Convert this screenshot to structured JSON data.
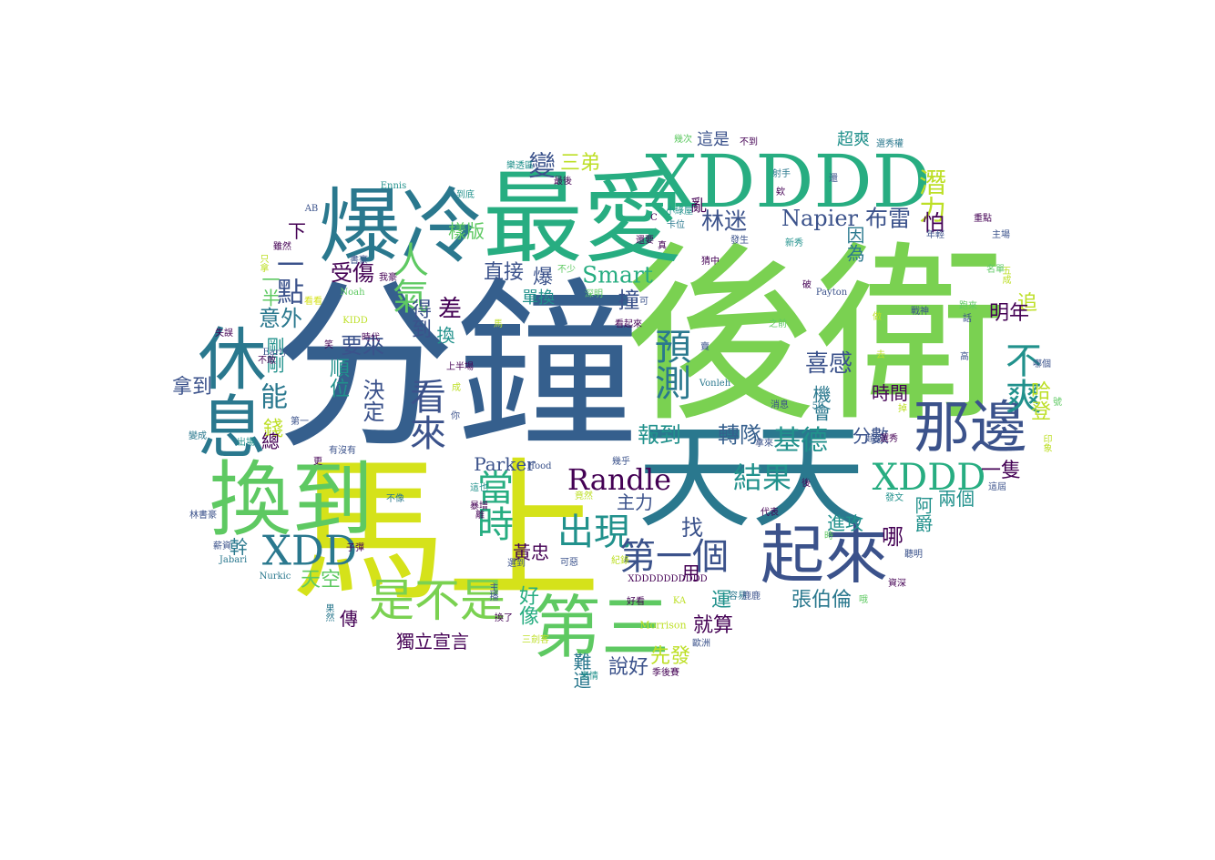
{
  "palette": [
    "#440154",
    "#3b528b",
    "#21918c",
    "#2a788e",
    "#27ad81",
    "#5ec962",
    "#7ad151",
    "#bddf26",
    "#d5e21a",
    "#355f8d"
  ],
  "words": [
    {
      "text": "後衛",
      "color": "#7ad151"
    },
    {
      "text": "分鐘",
      "color": "#355f8d"
    },
    {
      "text": "馬上",
      "color": "#d5e21a"
    },
    {
      "text": "天天",
      "color": "#2a788e"
    },
    {
      "text": "最愛",
      "color": "#27ad81"
    },
    {
      "text": "爆冷",
      "color": "#2a788e"
    },
    {
      "text": "XDDDD",
      "color": "#27ad81"
    },
    {
      "text": "換到",
      "color": "#5ec962"
    },
    {
      "text": "休息",
      "color": "#2a788e"
    },
    {
      "text": "那邊",
      "color": "#3b528b"
    },
    {
      "text": "起來",
      "color": "#3b528b"
    },
    {
      "text": "第三",
      "color": "#5ec962"
    },
    {
      "text": "XDD",
      "color": "#2a788e"
    },
    {
      "text": "XDDD",
      "color": "#27ad81"
    },
    {
      "text": "預測",
      "color": "#2a788e"
    },
    {
      "text": "人氣",
      "color": "#5ec962"
    },
    {
      "text": "是不是",
      "color": "#7ad151"
    },
    {
      "text": "Randle",
      "color": "#440154"
    },
    {
      "text": "出現",
      "color": "#21918c"
    },
    {
      "text": "第一個",
      "color": "#3b528b"
    },
    {
      "text": "看來",
      "color": "#3b528b"
    },
    {
      "text": "當時",
      "color": "#27ad81"
    },
    {
      "text": "Napier",
      "color": "#3b528b"
    },
    {
      "text": "不爽",
      "color": "#21918c"
    },
    {
      "text": "一點",
      "color": "#3b528b"
    },
    {
      "text": "能",
      "color": "#2a788e"
    },
    {
      "text": "Smart",
      "color": "#27ad81"
    },
    {
      "text": "林迷",
      "color": "#3b528b"
    },
    {
      "text": "布雷",
      "color": "#3b528b"
    },
    {
      "text": "潛力",
      "color": "#bddf26"
    },
    {
      "text": "結果",
      "color": "#21918c"
    },
    {
      "text": "基德",
      "color": "#21918c"
    },
    {
      "text": "報到",
      "color": "#21918c"
    },
    {
      "text": "轉隊",
      "color": "#355f8d"
    },
    {
      "text": "喜感",
      "color": "#3b528b"
    },
    {
      "text": "受傷",
      "color": "#440154"
    },
    {
      "text": "決定",
      "color": "#3b528b"
    },
    {
      "text": "要來",
      "color": "#3b528b"
    },
    {
      "text": "意外",
      "color": "#2a788e"
    },
    {
      "text": "得到",
      "color": "#3b528b"
    },
    {
      "text": "順位",
      "color": "#21918c"
    },
    {
      "text": "剛剛",
      "color": "#21918c"
    },
    {
      "text": "拿到",
      "color": "#3b528b"
    },
    {
      "text": "錢",
      "color": "#bddf26"
    },
    {
      "text": "差",
      "color": "#440154"
    },
    {
      "text": "換",
      "color": "#21918c"
    },
    {
      "text": "直接",
      "color": "#3b528b"
    },
    {
      "text": "爆",
      "color": "#3b528b"
    },
    {
      "text": "單換",
      "color": "#21918c"
    },
    {
      "text": "三弟",
      "color": "#bddf26"
    },
    {
      "text": "變",
      "color": "#3b528b"
    },
    {
      "text": "樣版",
      "color": "#5ec962"
    },
    {
      "text": "下",
      "color": "#440154"
    },
    {
      "text": "一半",
      "color": "#5ec962"
    },
    {
      "text": "撞",
      "color": "#3b528b"
    },
    {
      "text": "因為",
      "color": "#2a788e"
    },
    {
      "text": "怕",
      "color": "#440154"
    },
    {
      "text": "追",
      "color": "#bddf26"
    },
    {
      "text": "明年",
      "color": "#440154"
    },
    {
      "text": "哈登",
      "color": "#bddf26"
    },
    {
      "text": "時間",
      "color": "#440154"
    },
    {
      "text": "機會",
      "color": "#2a788e"
    },
    {
      "text": "分數",
      "color": "#3b528b"
    },
    {
      "text": "一隻",
      "color": "#440154"
    },
    {
      "text": "兩個",
      "color": "#21918c"
    },
    {
      "text": "阿爵",
      "color": "#21918c"
    },
    {
      "text": "哪",
      "color": "#440154"
    },
    {
      "text": "進攻",
      "color": "#21918c"
    },
    {
      "text": "張伯倫",
      "color": "#2a788e"
    },
    {
      "text": "運",
      "color": "#21918c"
    },
    {
      "text": "就算",
      "color": "#440154"
    },
    {
      "text": "用",
      "color": "#440154"
    },
    {
      "text": "找",
      "color": "#3b528b"
    },
    {
      "text": "主力",
      "color": "#3b528b"
    },
    {
      "text": "先發",
      "color": "#bddf26"
    },
    {
      "text": "說好",
      "color": "#3b528b"
    },
    {
      "text": "難道",
      "color": "#2a788e"
    },
    {
      "text": "好像",
      "color": "#27ad81"
    },
    {
      "text": "黃忠",
      "color": "#440154"
    },
    {
      "text": "Parker",
      "color": "#3b528b"
    },
    {
      "text": "天空",
      "color": "#5ec962"
    },
    {
      "text": "幹",
      "color": "#2a788e"
    },
    {
      "text": "總",
      "color": "#440154"
    },
    {
      "text": "傳",
      "color": "#440154"
    },
    {
      "text": "獨立宣言",
      "color": "#440154"
    },
    {
      "text": "超爽",
      "color": "#21918c"
    },
    {
      "text": "這是",
      "color": "#3b528b"
    },
    {
      "text": "亂",
      "color": "#440154"
    },
    {
      "text": "XDDDDDDDDDD",
      "color": "#440154"
    },
    {
      "text": "Hood",
      "color": "#3b528b"
    },
    {
      "text": "Nurkic",
      "color": "#2a788e"
    },
    {
      "text": "Jabari",
      "color": "#2a788e"
    },
    {
      "text": "Payton",
      "color": "#3b528b"
    },
    {
      "text": "Vonleh",
      "color": "#2a788e"
    },
    {
      "text": "Morrison",
      "color": "#bddf26"
    },
    {
      "text": "Early",
      "color": "#3b528b"
    },
    {
      "text": "Noah",
      "color": "#5ec962"
    },
    {
      "text": "KIDD",
      "color": "#bddf26"
    },
    {
      "text": "Ennis",
      "color": "#21918c"
    },
    {
      "text": "AB",
      "color": "#3b528b"
    },
    {
      "text": "KA",
      "color": "#bddf26"
    },
    {
      "text": "林書豪",
      "color": "#3b528b"
    },
    {
      "text": "薪資",
      "color": "#3b528b"
    },
    {
      "text": "變成",
      "color": "#2a788e"
    },
    {
      "text": "失誤",
      "color": "#440154"
    },
    {
      "text": "出場",
      "color": "#21918c"
    },
    {
      "text": "雖然",
      "color": "#440154"
    },
    {
      "text": "書豪",
      "color": "#3b528b"
    },
    {
      "text": "我豪",
      "color": "#440154"
    },
    {
      "text": "樂透區",
      "color": "#21918c"
    },
    {
      "text": "最後",
      "color": "#440154"
    },
    {
      "text": "還要",
      "color": "#440154"
    },
    {
      "text": "發生",
      "color": "#3b528b"
    },
    {
      "text": "新秀",
      "color": "#21918c"
    },
    {
      "text": "射手",
      "color": "#2a788e"
    },
    {
      "text": "選秀權",
      "color": "#2a788e"
    },
    {
      "text": "重點",
      "color": "#440154"
    },
    {
      "text": "年輕",
      "color": "#3b528b"
    },
    {
      "text": "主場",
      "color": "#3b528b"
    },
    {
      "text": "名單",
      "color": "#5ec962"
    },
    {
      "text": "哪個",
      "color": "#3b528b"
    },
    {
      "text": "這屆",
      "color": "#3b528b"
    },
    {
      "text": "發文",
      "color": "#21918c"
    },
    {
      "text": "資深",
      "color": "#440154"
    },
    {
      "text": "聽明",
      "color": "#3b528b"
    },
    {
      "text": "容易",
      "color": "#2a788e"
    },
    {
      "text": "鹿鹿",
      "color": "#3b528b"
    },
    {
      "text": "歐洲",
      "color": "#3b528b"
    },
    {
      "text": "季後賽",
      "color": "#440154"
    },
    {
      "text": "表情",
      "color": "#21918c"
    },
    {
      "text": "好看",
      "color": "#440154"
    },
    {
      "text": "代表",
      "color": "#440154"
    },
    {
      "text": "超級",
      "color": "#3b528b"
    },
    {
      "text": "選秀",
      "color": "#440154"
    },
    {
      "text": "消息",
      "color": "#3b528b"
    },
    {
      "text": "看起來",
      "color": "#440154"
    },
    {
      "text": "之前",
      "color": "#5ec962"
    },
    {
      "text": "戰神",
      "color": "#3b528b"
    },
    {
      "text": "猜中",
      "color": "#440154"
    },
    {
      "text": "小綠屋",
      "color": "#21918c"
    },
    {
      "text": "卡位",
      "color": "#2a788e"
    },
    {
      "text": "幾次",
      "color": "#5ec962"
    },
    {
      "text": "不到",
      "color": "#440154"
    },
    {
      "text": "上半場",
      "color": "#440154"
    },
    {
      "text": "有沒有",
      "color": "#3b528b"
    },
    {
      "text": "時代",
      "color": "#440154"
    },
    {
      "text": "看看",
      "color": "#d5e21a"
    },
    {
      "text": "不敢",
      "color": "#440154"
    },
    {
      "text": "不少",
      "color": "#5ec962"
    },
    {
      "text": "選到",
      "color": "#3b528b"
    },
    {
      "text": "這也",
      "color": "#21918c"
    },
    {
      "text": "暴增",
      "color": "#440154"
    },
    {
      "text": "不像",
      "color": "#2a788e"
    },
    {
      "text": "可惡",
      "color": "#3b528b"
    },
    {
      "text": "換了",
      "color": "#440154"
    },
    {
      "text": "三劍客",
      "color": "#bddf26"
    },
    {
      "text": "幾乎",
      "color": "#3b528b"
    },
    {
      "text": "子彈",
      "color": "#440154"
    },
    {
      "text": "竟然",
      "color": "#bddf26"
    },
    {
      "text": "紀錄",
      "color": "#bddf26"
    },
    {
      "text": "深明",
      "color": "#5ec962"
    },
    {
      "text": "可",
      "color": "#3b528b"
    },
    {
      "text": "真",
      "color": "#440154"
    },
    {
      "text": "破",
      "color": "#440154"
    },
    {
      "text": "做",
      "color": "#bddf26"
    },
    {
      "text": "去",
      "color": "#bddf26"
    },
    {
      "text": "高",
      "color": "#3b528b"
    },
    {
      "text": "掉",
      "color": "#bddf26"
    },
    {
      "text": "時",
      "color": "#5ec962"
    },
    {
      "text": "後",
      "color": "#440154"
    },
    {
      "text": "50",
      "color": "#2a788e"
    },
    {
      "text": "賣",
      "color": "#3b528b"
    },
    {
      "text": "欸",
      "color": "#440154"
    },
    {
      "text": "還",
      "color": "#3b528b"
    },
    {
      "text": "C",
      "color": "#440154"
    },
    {
      "text": "笑",
      "color": "#440154"
    },
    {
      "text": "馬",
      "color": "#bddf26"
    },
    {
      "text": "成",
      "color": "#bddf26"
    },
    {
      "text": "你",
      "color": "#3b528b"
    },
    {
      "text": "拿來",
      "color": "#3b528b"
    },
    {
      "text": "跑來",
      "color": "#5ec962"
    },
    {
      "text": "話",
      "color": "#3b528b"
    },
    {
      "text": "五成",
      "color": "#bddf26"
    },
    {
      "text": "印象",
      "color": "#bddf26"
    },
    {
      "text": "果然",
      "color": "#2a788e"
    },
    {
      "text": "主播",
      "color": "#3b528b"
    },
    {
      "text": "只拿",
      "color": "#bddf26"
    },
    {
      "text": "到底",
      "color": "#21918c"
    },
    {
      "text": "第一",
      "color": "#3b528b"
    },
    {
      "text": "離",
      "color": "#440154"
    },
    {
      "text": "號",
      "color": "#5ec962"
    },
    {
      "text": "哦",
      "color": "#5ec962"
    },
    {
      "text": "更",
      "color": "#440154"
    }
  ]
}
